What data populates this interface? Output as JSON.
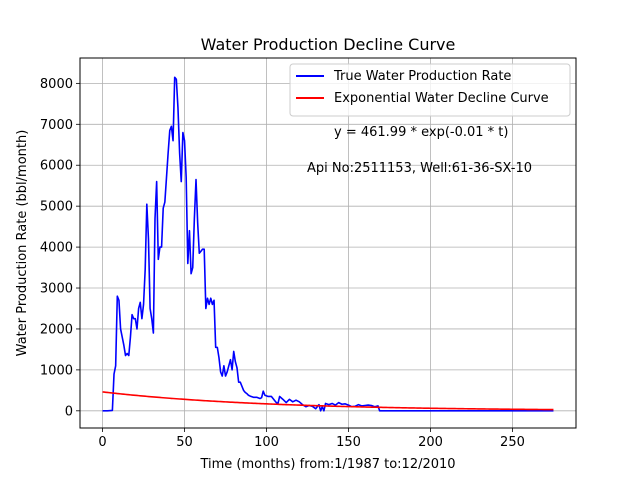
{
  "chart_data": {
    "type": "line",
    "title": "Water Production Decline Curve",
    "xlabel": "Time (months) from:1/1987 to:12/2010",
    "ylabel": "Water Production Rate (bbl/month)",
    "xlim": [
      -13.75,
      288.75
    ],
    "ylim": [
      -420,
      8620
    ],
    "xticks": [
      0,
      50,
      100,
      150,
      200,
      250
    ],
    "yticks": [
      0,
      1000,
      2000,
      3000,
      4000,
      5000,
      6000,
      7000,
      8000
    ],
    "grid": true,
    "legend_position": "top-right",
    "annotations": [
      "y = 461.99 * exp(-0.01 * t)",
      "Api No:2511153, Well:61-36-SX-10"
    ],
    "series": [
      {
        "name": "True Water Production Rate",
        "color": "#0000ff",
        "points": [
          [
            0,
            0
          ],
          [
            3,
            0
          ],
          [
            6,
            10
          ],
          [
            7,
            900
          ],
          [
            8,
            1100
          ],
          [
            9,
            2800
          ],
          [
            10,
            2700
          ],
          [
            11,
            2000
          ],
          [
            12,
            1800
          ],
          [
            13,
            1600
          ],
          [
            14,
            1350
          ],
          [
            15,
            1400
          ],
          [
            16,
            1350
          ],
          [
            17,
            1800
          ],
          [
            18,
            2350
          ],
          [
            19,
            2250
          ],
          [
            20,
            2250
          ],
          [
            21,
            2000
          ],
          [
            22,
            2500
          ],
          [
            23,
            2650
          ],
          [
            24,
            2250
          ],
          [
            25,
            2600
          ],
          [
            26,
            3450
          ],
          [
            27,
            5050
          ],
          [
            28,
            4200
          ],
          [
            29,
            2500
          ],
          [
            30,
            2250
          ],
          [
            31,
            1900
          ],
          [
            32,
            4700
          ],
          [
            33,
            5600
          ],
          [
            34,
            3700
          ],
          [
            35,
            4000
          ],
          [
            36,
            4000
          ],
          [
            37,
            4950
          ],
          [
            38,
            5100
          ],
          [
            39,
            5700
          ],
          [
            40,
            6300
          ],
          [
            41,
            6850
          ],
          [
            42,
            6950
          ],
          [
            43,
            6600
          ],
          [
            44,
            8150
          ],
          [
            45,
            8100
          ],
          [
            46,
            7400
          ],
          [
            47,
            6300
          ],
          [
            48,
            5600
          ],
          [
            49,
            6800
          ],
          [
            50,
            6600
          ],
          [
            51,
            5700
          ],
          [
            52,
            3600
          ],
          [
            53,
            4400
          ],
          [
            54,
            3350
          ],
          [
            55,
            3500
          ],
          [
            56,
            4700
          ],
          [
            57,
            5650
          ],
          [
            58,
            4600
          ],
          [
            59,
            3850
          ],
          [
            60,
            3900
          ],
          [
            61,
            3950
          ],
          [
            62,
            3950
          ],
          [
            63,
            2500
          ],
          [
            64,
            2750
          ],
          [
            65,
            2600
          ],
          [
            66,
            2750
          ],
          [
            67,
            2600
          ],
          [
            68,
            2700
          ],
          [
            69,
            1550
          ],
          [
            70,
            1550
          ],
          [
            71,
            1300
          ],
          [
            72,
            950
          ],
          [
            73,
            850
          ],
          [
            74,
            1100
          ],
          [
            75,
            850
          ],
          [
            76,
            950
          ],
          [
            77,
            1100
          ],
          [
            78,
            1250
          ],
          [
            79,
            1000
          ],
          [
            80,
            1450
          ],
          [
            81,
            1200
          ],
          [
            82,
            1050
          ],
          [
            83,
            700
          ],
          [
            84,
            700
          ],
          [
            85,
            600
          ],
          [
            86,
            500
          ],
          [
            87,
            450
          ],
          [
            88,
            420
          ],
          [
            89,
            380
          ],
          [
            90,
            360
          ],
          [
            92,
            330
          ],
          [
            94,
            330
          ],
          [
            96,
            300
          ],
          [
            97,
            320
          ],
          [
            98,
            480
          ],
          [
            99,
            380
          ],
          [
            101,
            350
          ],
          [
            103,
            350
          ],
          [
            105,
            250
          ],
          [
            106,
            200
          ],
          [
            107,
            180
          ],
          [
            108,
            350
          ],
          [
            110,
            280
          ],
          [
            112,
            200
          ],
          [
            114,
            280
          ],
          [
            116,
            220
          ],
          [
            118,
            260
          ],
          [
            120,
            220
          ],
          [
            122,
            150
          ],
          [
            124,
            100
          ],
          [
            126,
            130
          ],
          [
            128,
            110
          ],
          [
            130,
            50
          ],
          [
            132,
            150
          ],
          [
            133,
            0
          ],
          [
            134,
            100
          ],
          [
            135,
            0
          ],
          [
            136,
            180
          ],
          [
            138,
            150
          ],
          [
            140,
            180
          ],
          [
            142,
            140
          ],
          [
            144,
            200
          ],
          [
            146,
            160
          ],
          [
            148,
            170
          ],
          [
            150,
            140
          ],
          [
            152,
            100
          ],
          [
            154,
            110
          ],
          [
            156,
            150
          ],
          [
            158,
            120
          ],
          [
            160,
            130
          ],
          [
            162,
            140
          ],
          [
            164,
            130
          ],
          [
            166,
            100
          ],
          [
            168,
            120
          ],
          [
            169,
            0
          ],
          [
            175,
            0
          ],
          [
            185,
            0
          ],
          [
            200,
            0
          ],
          [
            225,
            0
          ],
          [
            250,
            0
          ],
          [
            275,
            0
          ]
        ]
      },
      {
        "name": "Exponential Water Decline Curve",
        "color": "#ff0000",
        "function": {
          "a": 461.99,
          "b": -0.01,
          "t_start": 0,
          "t_end": 275
        }
      }
    ]
  }
}
